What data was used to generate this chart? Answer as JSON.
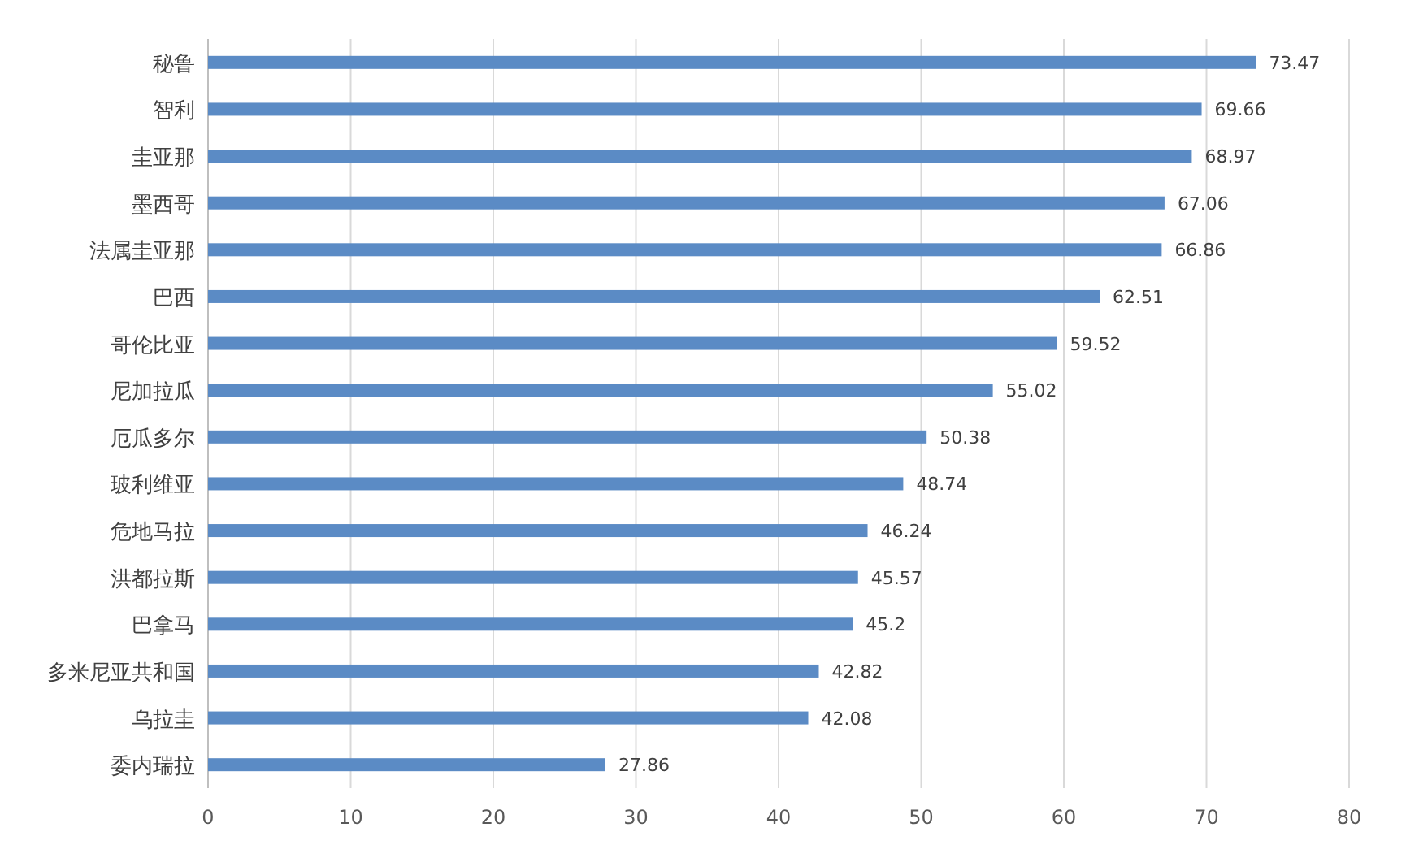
{
  "chart_data": {
    "type": "bar",
    "orientation": "horizontal",
    "categories": [
      "秘鲁",
      "智利",
      "圭亚那",
      "墨西哥",
      "法属圭亚那",
      "巴西",
      "哥伦比亚",
      "尼加拉瓜",
      "厄瓜多尔",
      "玻利维亚",
      "危地马拉",
      "洪都拉斯",
      "巴拿马",
      "多米尼亚共和国",
      "乌拉圭",
      "委内瑞拉"
    ],
    "values": [
      73.47,
      69.66,
      68.97,
      67.06,
      66.86,
      62.51,
      59.52,
      55.02,
      50.38,
      48.74,
      46.24,
      45.57,
      45.2,
      42.82,
      42.08,
      27.86
    ],
    "color": "#5b8bc5",
    "xlim": [
      0,
      80
    ],
    "xticks": [
      0,
      10,
      20,
      30,
      40,
      50,
      60,
      70,
      80
    ],
    "grid": "x",
    "data_labels": true
  }
}
